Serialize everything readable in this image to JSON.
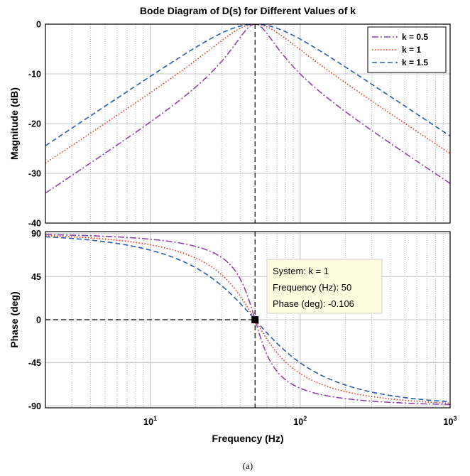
{
  "figure": {
    "title": "Bode Diagram of D(s) for Different Values of k",
    "caption": "(a)"
  },
  "chart_data": {
    "type": "line",
    "title": "Bode Diagram of D(s) for Different Values of k",
    "xlabel": "Frequency  (Hz)",
    "xscale": "log",
    "xlim": [
      2,
      1000
    ],
    "x_tick_labels": [
      {
        "value": 10,
        "base": "10",
        "exp": "1"
      },
      {
        "value": 100,
        "base": "10",
        "exp": "2"
      },
      {
        "value": 1000,
        "base": "10",
        "exp": "3"
      }
    ],
    "grid": true,
    "legend_position": "top-right",
    "center_frequency_hz": 50,
    "series": [
      {
        "name": "k = 0.5",
        "k": 0.5,
        "color": "#8e44ad",
        "style": "dashdot"
      },
      {
        "name": "k = 1",
        "k": 1,
        "color": "#e8361c",
        "style": "dotted"
      },
      {
        "name": "k = 1.5",
        "k": 1.5,
        "color": "#2a5db0",
        "style": "dashed"
      }
    ],
    "magnitude": {
      "ylabel": "Magnitude (dB)",
      "ylim": [
        -40,
        0
      ],
      "y_ticks": [
        0,
        -10,
        -20,
        -30,
        -40
      ],
      "y_tick_labels": [
        "0",
        "-10",
        "-20",
        "-30",
        "-40"
      ]
    },
    "phase": {
      "ylabel": "Phase (deg)",
      "ylim": [
        -92,
        92
      ],
      "y_ticks": [
        90,
        45,
        0,
        -45,
        -90
      ],
      "y_tick_labels": [
        "90",
        "45",
        "0",
        "-45",
        "-90"
      ]
    },
    "datatip": {
      "lines": [
        "System: k = 1",
        "Frequency (Hz): 50",
        "Phase (deg): -0.106"
      ],
      "x": 50,
      "y": -0.106
    }
  }
}
